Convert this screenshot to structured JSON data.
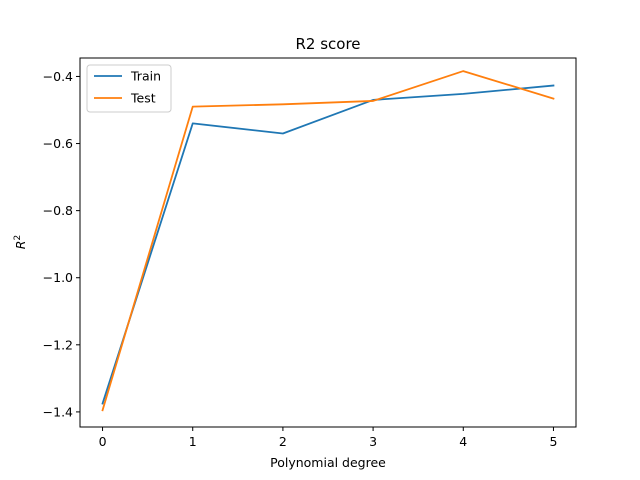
{
  "chart_data": {
    "type": "line",
    "title": "R2 score",
    "xlabel": "Polynomial degree",
    "ylabel_base": "R",
    "ylabel_sup": "2",
    "x": [
      0,
      1,
      2,
      3,
      4,
      5
    ],
    "xticks": [
      0,
      1,
      2,
      3,
      4,
      5
    ],
    "xtick_labels": [
      "0",
      "1",
      "2",
      "3",
      "4",
      "5"
    ],
    "yticks": [
      -1.4,
      -1.2,
      -1.0,
      -0.8,
      -0.6,
      -0.4
    ],
    "ytick_labels": [
      "−1.4",
      "−1.2",
      "−1.0",
      "−0.8",
      "−0.6",
      "−0.4"
    ],
    "xlim": [
      -0.25,
      5.25
    ],
    "ylim": [
      -1.445,
      -0.345
    ],
    "grid": false,
    "legend_position": "top-left",
    "series": [
      {
        "name": "Train",
        "color": "#1f77b4",
        "values": [
          -1.375,
          -0.54,
          -0.57,
          -0.47,
          -0.452,
          -0.427
        ]
      },
      {
        "name": "Test",
        "color": "#ff7f0e",
        "values": [
          -1.395,
          -0.49,
          -0.483,
          -0.473,
          -0.384,
          -0.466
        ]
      }
    ]
  }
}
